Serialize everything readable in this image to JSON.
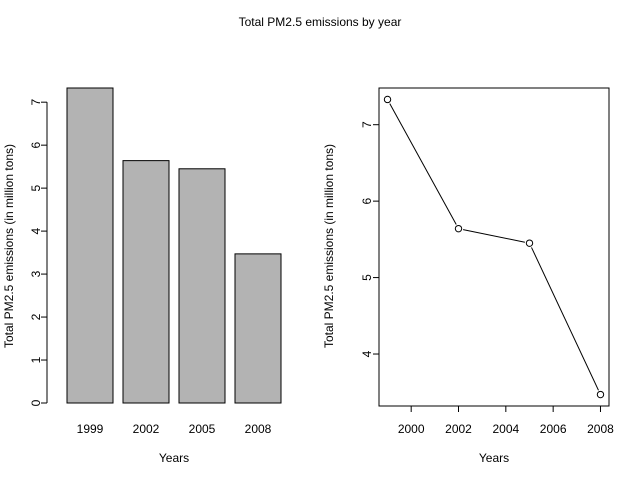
{
  "figure": {
    "title": "Total PM2.5 emissions by year"
  },
  "chart_data": [
    {
      "type": "bar",
      "categories": [
        "1999",
        "2002",
        "2005",
        "2008"
      ],
      "values": [
        7.33,
        5.64,
        5.45,
        3.47
      ],
      "xlabel": "Years",
      "ylabel": "Total PM2.5 emissions (in million tons)",
      "ylim": [
        0,
        7.33
      ],
      "yticks": [
        0,
        1,
        2,
        3,
        4,
        5,
        6,
        7
      ],
      "bar_color": "#b3b3b3",
      "grid": false
    },
    {
      "type": "line",
      "x": [
        1999,
        2002,
        2005,
        2008
      ],
      "values": [
        7.33,
        5.64,
        5.45,
        3.47
      ],
      "xlabel": "Years",
      "ylabel": "Total PM2.5 emissions (in million tons)",
      "xlim": [
        1998.64,
        2008.36
      ],
      "ylim": [
        3.32,
        7.48
      ],
      "xticks": [
        2000,
        2002,
        2004,
        2006,
        2008
      ],
      "yticks": [
        4,
        5,
        6,
        7
      ],
      "markers": "open-circle",
      "grid": false
    }
  ]
}
